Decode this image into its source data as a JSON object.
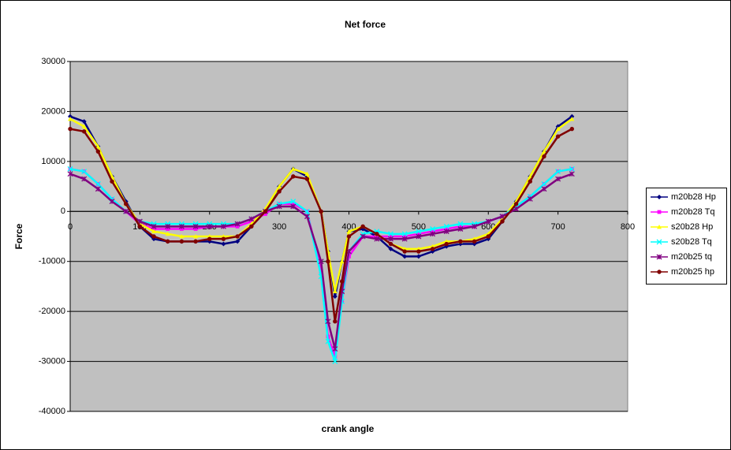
{
  "chart_data": {
    "type": "line",
    "title": "Net force",
    "x_label": "crank angle",
    "y_label": "Force",
    "x": [
      0,
      20,
      40,
      60,
      80,
      100,
      120,
      140,
      160,
      180,
      200,
      220,
      240,
      260,
      280,
      300,
      320,
      340,
      360,
      370,
      380,
      390,
      400,
      420,
      440,
      460,
      480,
      500,
      520,
      540,
      560,
      580,
      600,
      620,
      640,
      660,
      680,
      700,
      720
    ],
    "xlim": [
      0,
      800
    ],
    "xticks": [
      0,
      100,
      200,
      300,
      400,
      500,
      600,
      700,
      800
    ],
    "ylim": [
      -40000,
      30000
    ],
    "yticks": [
      -40000,
      -30000,
      -20000,
      -10000,
      0,
      10000,
      20000,
      30000
    ],
    "grid": true,
    "legend": "right",
    "series": [
      {
        "name": "m20b28 Hp",
        "color": "#000080",
        "marker": "diamond",
        "values": [
          19000,
          18000,
          13000,
          7000,
          2000,
          -3000,
          -5500,
          -6000,
          -6000,
          -6000,
          -6000,
          -6500,
          -6000,
          -3000,
          0,
          5000,
          8500,
          7000,
          0,
          -8000,
          -17000,
          -10000,
          -4000,
          -3500,
          -5000,
          -7500,
          -9000,
          -9000,
          -8000,
          -7000,
          -6500,
          -6500,
          -5500,
          -2000,
          2000,
          7000,
          12000,
          17000,
          19000
        ]
      },
      {
        "name": "m20b28 Tq",
        "color": "#ff00ff",
        "marker": "square",
        "values": [
          8500,
          8000,
          5500,
          2500,
          0,
          -2500,
          -3500,
          -3500,
          -3500,
          -3500,
          -3000,
          -3000,
          -3000,
          -2000,
          -500,
          1500,
          1500,
          0,
          -12000,
          -25000,
          -29000,
          -18000,
          -9000,
          -5000,
          -5000,
          -5000,
          -5000,
          -4500,
          -4000,
          -3500,
          -3000,
          -3000,
          -2000,
          -1000,
          1000,
          3000,
          5500,
          8000,
          8500
        ]
      },
      {
        "name": "s20b28 Hp",
        "color": "#ffff00",
        "marker": "triangle",
        "values": [
          18500,
          17000,
          13000,
          7000,
          1500,
          -2500,
          -4000,
          -4500,
          -5000,
          -5000,
          -5000,
          -5000,
          -5000,
          -2500,
          500,
          5000,
          8500,
          7500,
          0,
          -8000,
          -16000,
          -10000,
          -4000,
          -3000,
          -4500,
          -6500,
          -7500,
          -7500,
          -7000,
          -6000,
          -6000,
          -5500,
          -4500,
          -1500,
          2000,
          7000,
          12000,
          16500,
          18500
        ]
      },
      {
        "name": "s20b28 Tq",
        "color": "#00ffff",
        "marker": "x",
        "values": [
          8500,
          8000,
          5500,
          2500,
          0,
          -2000,
          -2500,
          -2500,
          -2500,
          -2500,
          -2500,
          -2500,
          -2500,
          -1500,
          0,
          1500,
          2000,
          0,
          -13000,
          -26000,
          -30000,
          -18000,
          -8000,
          -4500,
          -4000,
          -4500,
          -4500,
          -4000,
          -3500,
          -3000,
          -2500,
          -2500,
          -2000,
          -1000,
          1000,
          3000,
          5500,
          8000,
          8500
        ]
      },
      {
        "name": "m20b25 tq",
        "color": "#800080",
        "marker": "star",
        "values": [
          7500,
          6500,
          4500,
          2000,
          0,
          -2000,
          -3000,
          -3000,
          -3000,
          -3000,
          -3000,
          -3000,
          -2500,
          -1500,
          0,
          1000,
          1000,
          -1000,
          -10000,
          -22000,
          -27500,
          -16000,
          -8000,
          -5000,
          -5500,
          -5500,
          -5500,
          -5000,
          -4500,
          -4000,
          -3500,
          -3000,
          -2000,
          -1000,
          500,
          2500,
          4500,
          6500,
          7500
        ]
      },
      {
        "name": "m20b25 hp",
        "color": "#800000",
        "marker": "circle",
        "values": [
          16500,
          16000,
          12000,
          6000,
          1500,
          -3000,
          -5000,
          -6000,
          -6000,
          -6000,
          -5500,
          -5500,
          -5000,
          -3000,
          0,
          4000,
          7000,
          6500,
          0,
          -10000,
          -22000,
          -14000,
          -5000,
          -3000,
          -4500,
          -6500,
          -8000,
          -8000,
          -7500,
          -6500,
          -6000,
          -6000,
          -5000,
          -2000,
          1500,
          6000,
          11000,
          15000,
          16500
        ]
      }
    ]
  }
}
